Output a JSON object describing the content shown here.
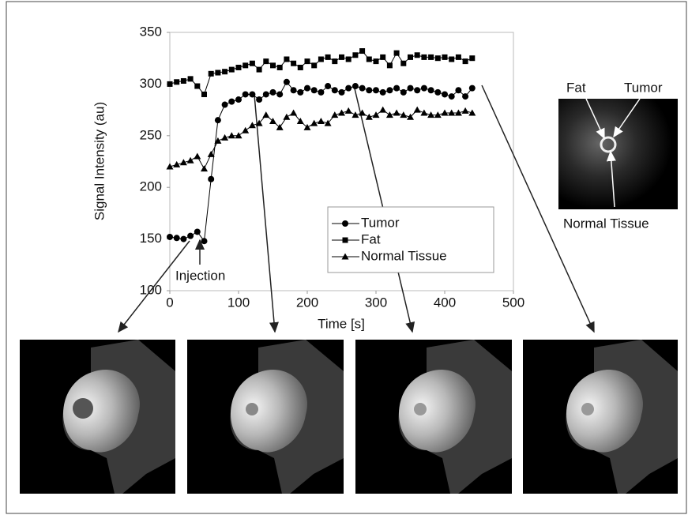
{
  "chart_data": {
    "type": "line",
    "x_label": "Time [s]",
    "y_label": "Signal Intensity (au)",
    "x": [
      0,
      10,
      20,
      30,
      40,
      50,
      60,
      70,
      80,
      90,
      100,
      110,
      120,
      130,
      140,
      150,
      160,
      170,
      180,
      190,
      200,
      210,
      220,
      230,
      240,
      250,
      260,
      270,
      280,
      290,
      300,
      310,
      320,
      330,
      340,
      350,
      360,
      370,
      380,
      390,
      400,
      410,
      420,
      430,
      440
    ],
    "series": [
      {
        "name": "Tumor",
        "color": "#000000",
        "marker": "circle",
        "values": [
          152,
          151,
          150,
          153,
          157,
          148,
          208,
          265,
          280,
          283,
          285,
          290,
          290,
          285,
          290,
          292,
          290,
          302,
          294,
          292,
          296,
          294,
          292,
          298,
          294,
          292,
          296,
          298,
          296,
          294,
          294,
          292,
          294,
          296,
          292,
          296,
          294,
          296,
          294,
          292,
          290,
          288,
          294,
          288,
          296
        ]
      },
      {
        "name": "Fat",
        "color": "#000000",
        "marker": "square",
        "values": [
          300,
          302,
          303,
          305,
          298,
          290,
          310,
          311,
          312,
          314,
          316,
          318,
          320,
          314,
          322,
          318,
          316,
          324,
          320,
          316,
          322,
          318,
          324,
          326,
          322,
          326,
          324,
          328,
          332,
          324,
          322,
          326,
          318,
          330,
          320,
          326,
          328,
          326,
          326,
          325,
          326,
          324,
          326,
          322,
          325
        ]
      },
      {
        "name": "Normal Tissue",
        "color": "#000000",
        "marker": "triangle",
        "values": [
          220,
          222,
          224,
          226,
          230,
          218,
          232,
          245,
          248,
          250,
          250,
          255,
          260,
          262,
          270,
          264,
          258,
          268,
          272,
          264,
          258,
          262,
          264,
          262,
          270,
          272,
          274,
          270,
          272,
          268,
          270,
          275,
          270,
          272,
          270,
          268,
          275,
          272,
          270,
          270,
          272,
          272,
          272,
          274,
          272
        ]
      }
    ],
    "xlim": [
      0,
      500
    ],
    "xticks": [
      0,
      100,
      200,
      300,
      400,
      500
    ],
    "ylim": [
      100,
      350
    ],
    "yticks": [
      100,
      150,
      200,
      250,
      300,
      350
    ],
    "grid": false,
    "annotations": [
      "Injection",
      "Fat",
      "Tumor",
      "Normal Tissue"
    ]
  }
}
